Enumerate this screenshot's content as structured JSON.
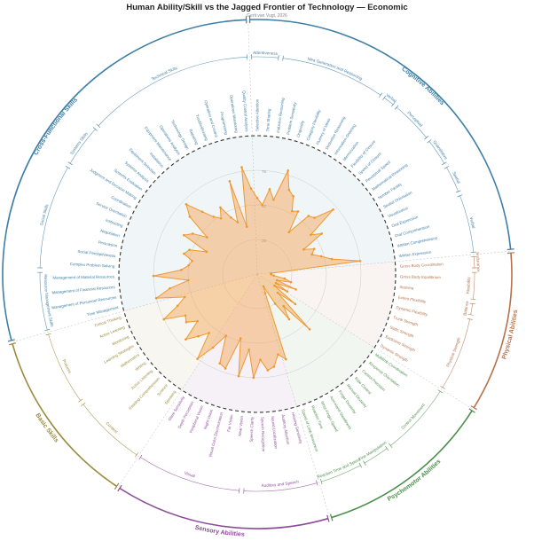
{
  "header": {
    "title": "Human Ability/Skill vs the Jagged Frontier of Technology — Economic",
    "subtitle": "Gerit van Vugt, 2026"
  },
  "chart_data": {
    "type": "radar",
    "title": "Human Ability/Skill vs the Jagged Frontier of Technology — Economic",
    "subtitle": "Gerit van Vugt, 2026",
    "r_ticks": [
      "25",
      "50",
      "75"
    ],
    "r_range": [
      0,
      100
    ],
    "categories": [
      {
        "name": "Cognitive Abilities",
        "color": "#3d7ea6"
      },
      {
        "name": "Physical Abilities",
        "color": "#b5714a"
      },
      {
        "name": "Psychomotor Abilities",
        "color": "#4a8f4a"
      },
      {
        "name": "Sensory Abilities",
        "color": "#8e4a9a"
      },
      {
        "name": "Basic Skills",
        "color": "#9a8a3a"
      },
      {
        "name": "Cross-Functional Skills",
        "color": "#3d7ea6"
      }
    ],
    "subgroups": [
      "Attentiveness",
      "Idea Generation and Reasoning",
      "Verbal",
      "Perceptual",
      "Quantitative",
      "Spatial",
      "Endurance",
      "Flexibility",
      "Balance",
      "Physical Strength",
      "Control Movement",
      "Fine Manipulation",
      "Reaction Time and Speed",
      "Auditory and Speech",
      "Visual",
      "Content",
      "Process",
      "Resource Management Skills",
      "Social Skills",
      "Systems Skills",
      "Technical Skills"
    ],
    "series": [
      {
        "color": "#f5a24b",
        "points": [
          {
            "label": "Selective Attention",
            "value": 55
          },
          {
            "label": "Time Sharing",
            "value": 50
          },
          {
            "label": "Inductive Reasoning",
            "value": 62
          },
          {
            "label": "Problem Sensitivity",
            "value": 55
          },
          {
            "label": "Originality",
            "value": 78
          },
          {
            "label": "Category Flexibility",
            "value": 65
          },
          {
            "label": "Fluency of Ideas",
            "value": 62
          },
          {
            "label": "Deductive Reasoning",
            "value": 52
          },
          {
            "label": "Information Ordering",
            "value": 54
          },
          {
            "label": "Memorization",
            "value": 38
          },
          {
            "label": "Flexibility of Closure",
            "value": 56
          },
          {
            "label": "Speed of Closure",
            "value": 58
          },
          {
            "label": "Perceptual Speed",
            "value": 72
          },
          {
            "label": "Mathematical Reasoning",
            "value": 48
          },
          {
            "label": "Number Facility",
            "value": 55
          },
          {
            "label": "Spatial Orientation",
            "value": 38
          },
          {
            "label": "Visualization",
            "value": 45
          },
          {
            "label": "Oral Expression",
            "value": 42
          },
          {
            "label": "Oral Comprehension",
            "value": 48
          },
          {
            "label": "Written Comprehension",
            "value": 55
          },
          {
            "label": "Written Expression",
            "value": 75
          },
          {
            "label": "Gross Body Coordination",
            "value": 10
          },
          {
            "label": "Gross Body Equilibrium",
            "value": 10
          },
          {
            "label": "Stamina",
            "value": 12
          },
          {
            "label": "Extent Flexibility",
            "value": 20
          },
          {
            "label": "Dynamic Flexibility",
            "value": 25
          },
          {
            "label": "Trunk Strength",
            "value": 15
          },
          {
            "label": "Static Strength",
            "value": 30
          },
          {
            "label": "Explosive Strength",
            "value": 15
          },
          {
            "label": "Dynamic Strength",
            "value": 25
          },
          {
            "label": "Multilimb Coordination",
            "value": 15
          },
          {
            "label": "Response Orientation",
            "value": 35
          },
          {
            "label": "Control Precision",
            "value": 20
          },
          {
            "label": "Rate Control",
            "value": 55
          },
          {
            "label": "Manual Dexterity",
            "value": 30
          },
          {
            "label": "Finger Dexterity",
            "value": 40
          },
          {
            "label": "Arm-Hand Steadiness",
            "value": 25
          },
          {
            "label": "Wrist-Finger Speed",
            "value": 10
          },
          {
            "label": "Reaction Time",
            "value": 15
          },
          {
            "label": "Speed of Limb Movement",
            "value": 65
          },
          {
            "label": "Hearing Sensitivity",
            "value": 60
          },
          {
            "label": "Auditory Attention",
            "value": 68
          },
          {
            "label": "Sound Localization",
            "value": 70
          },
          {
            "label": "Speech Recognition",
            "value": 62
          },
          {
            "label": "Speech Clarity",
            "value": 75
          },
          {
            "label": "Near Vision",
            "value": 55
          },
          {
            "label": "Far Vision",
            "value": 75
          },
          {
            "label": "Visual Color Discrimination",
            "value": 48
          },
          {
            "label": "Night Vision",
            "value": 72
          },
          {
            "label": "Peripheral Vision",
            "value": 70
          },
          {
            "label": "Depth Perception",
            "value": 50
          },
          {
            "label": "Glare Sensitivity",
            "value": 62
          },
          {
            "label": "Speaking",
            "value": 75
          },
          {
            "label": "Science",
            "value": 55
          },
          {
            "label": "Reading Comprehension",
            "value": 62
          },
          {
            "label": "Active Listening",
            "value": 70
          },
          {
            "label": "Writing",
            "value": 55
          },
          {
            "label": "Mathematics",
            "value": 62
          },
          {
            "label": "Learning Strategies",
            "value": 60
          },
          {
            "label": "Monitoring",
            "value": 75
          },
          {
            "label": "Active Learning",
            "value": 62
          },
          {
            "label": "Critical Thinking",
            "value": 55
          },
          {
            "label": "Time Management",
            "value": 75
          },
          {
            "label": "Management of Personnel Resources",
            "value": 64
          },
          {
            "label": "Management of Financial Resources",
            "value": 50
          },
          {
            "label": "Management of Material Resources",
            "value": 75
          },
          {
            "label": "Complex Problem Solving",
            "value": 55
          },
          {
            "label": "Social Perceptiveness",
            "value": 50
          },
          {
            "label": "Persuasion",
            "value": 48
          },
          {
            "label": "Negotiation",
            "value": 55
          },
          {
            "label": "Instructing",
            "value": 52
          },
          {
            "label": "Service Orientation",
            "value": 40
          },
          {
            "label": "Coordination",
            "value": 60
          },
          {
            "label": "Judgment and Decision Making",
            "value": 55
          },
          {
            "label": "Systems Evaluation",
            "value": 45
          },
          {
            "label": "Systems Analysis",
            "value": 64
          },
          {
            "label": "Equipment Selection",
            "value": 72
          },
          {
            "label": "Installation",
            "value": 60
          },
          {
            "label": "Equipment Maintenance",
            "value": 52
          },
          {
            "label": "Operations Analysis",
            "value": 48
          },
          {
            "label": "Technology Design",
            "value": 55
          },
          {
            "label": "Repairing",
            "value": 45
          },
          {
            "label": "Troubleshooting",
            "value": 40
          },
          {
            "label": "Operation and Control",
            "value": 70
          },
          {
            "label": "Programming",
            "value": 35
          },
          {
            "label": "Operations Monitoring",
            "value": 78
          },
          {
            "label": "Quality Control Analysis",
            "value": 62
          }
        ]
      }
    ]
  },
  "layout": {
    "cat_spans": [
      {
        "cat": 0,
        "start": 0,
        "end": 21
      },
      {
        "cat": 1,
        "start": 21,
        "end": 30
      },
      {
        "cat": 2,
        "start": 30,
        "end": 40
      },
      {
        "cat": 3,
        "start": 40,
        "end": 52
      },
      {
        "cat": 4,
        "start": 52,
        "end": 62
      },
      {
        "cat": 5,
        "start": 62,
        "end": 87
      }
    ],
    "sub_spans": [
      {
        "sub": 0,
        "start": 0,
        "end": 2
      },
      {
        "sub": 1,
        "start": 2,
        "end": 9
      },
      {
        "sub": 2,
        "start": 9,
        "end": 10
      },
      {
        "sub": 3,
        "start": 10,
        "end": 13
      },
      {
        "sub": 4,
        "start": 13,
        "end": 15
      },
      {
        "sub": 5,
        "start": 15,
        "end": 17
      },
      {
        "sub": 2,
        "start": 17,
        "end": 21
      },
      {
        "sub": 6,
        "start": 21,
        "end": 22
      },
      {
        "sub": 7,
        "start": 22,
        "end": 24
      },
      {
        "sub": 8,
        "start": 24,
        "end": 25
      },
      {
        "sub": 9,
        "start": 25,
        "end": 30
      },
      {
        "sub": 10,
        "start": 30,
        "end": 35
      },
      {
        "sub": 11,
        "start": 35,
        "end": 37
      },
      {
        "sub": 12,
        "start": 37,
        "end": 40
      },
      {
        "sub": 13,
        "start": 40,
        "end": 45
      },
      {
        "sub": 14,
        "start": 45,
        "end": 52
      },
      {
        "sub": 15,
        "start": 52,
        "end": 57
      },
      {
        "sub": 16,
        "start": 57,
        "end": 62
      },
      {
        "sub": 17,
        "start": 62,
        "end": 66
      },
      {
        "sub": 18,
        "start": 66,
        "end": 73
      },
      {
        "sub": 19,
        "start": 73,
        "end": 76
      },
      {
        "sub": 20,
        "start": 76,
        "end": 87
      }
    ]
  }
}
